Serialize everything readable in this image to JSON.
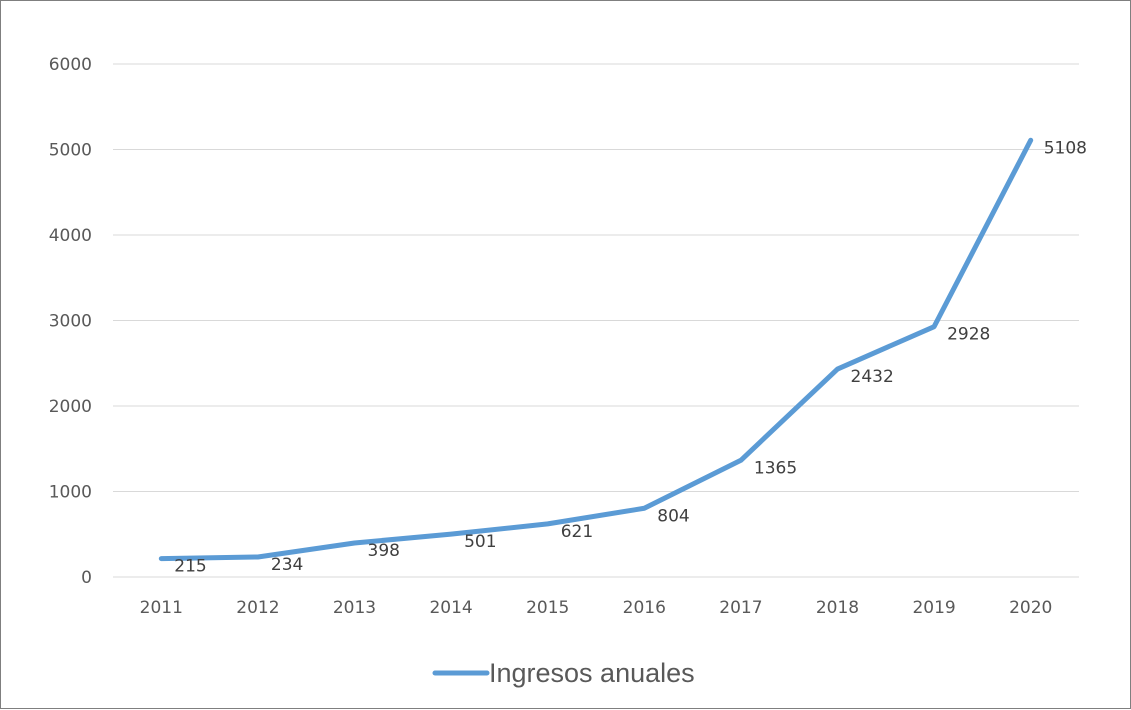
{
  "chart_data": {
    "type": "line",
    "title": "",
    "xlabel": "",
    "ylabel": "",
    "categories": [
      "2011",
      "2012",
      "2013",
      "2014",
      "2015",
      "2016",
      "2017",
      "2018",
      "2019",
      "2020"
    ],
    "series": [
      {
        "name": "Ingresos anuales",
        "values": [
          215,
          234,
          398,
          501,
          621,
          804,
          1365,
          2432,
          2928,
          5108
        ],
        "color": "#5b9bd5"
      }
    ],
    "data_labels": [
      "215",
      "234",
      "398",
      "501",
      "621",
      "804",
      "1365",
      "2432",
      "2928",
      "5108"
    ],
    "ylim": [
      0,
      6000
    ],
    "yticks": [
      "0",
      "1000",
      "2000",
      "3000",
      "4000",
      "5000",
      "6000"
    ],
    "grid": true,
    "legend_position": "bottom"
  }
}
